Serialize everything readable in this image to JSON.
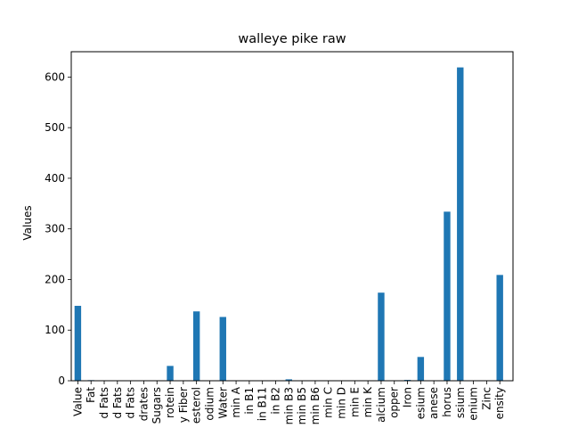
{
  "chart_data": {
    "type": "bar",
    "title": "walleye pike raw",
    "xlabel": "",
    "ylabel": "Values",
    "ylim": [
      0,
      650
    ],
    "yticks": [
      0,
      100,
      200,
      300,
      400,
      500,
      600
    ],
    "grid": false,
    "legend": "none",
    "bar_color": "#1f77b4",
    "categories": [
      "Value",
      "Fat",
      "d Fats",
      "d Fats",
      "d Fats",
      "drates",
      "Sugars",
      "rotein",
      "y Fiber",
      "esterol",
      "odium",
      "Water",
      "min A",
      "in B1",
      "in B11",
      "in B2",
      "min B3",
      "min B5",
      "min B6",
      "min C",
      "min D",
      "min E",
      "min K",
      "alcium",
      "opper",
      "Iron",
      "esium",
      "anese",
      "horus",
      "ssium",
      "enium",
      "Zinc",
      "ensity"
    ],
    "values": [
      148,
      1.2,
      0.3,
      0.3,
      0.4,
      0,
      0,
      29.3,
      0,
      137,
      0.05,
      126,
      0.01,
      0.3,
      0.02,
      0.2,
      2.8,
      0.85,
      0.14,
      0,
      0,
      0,
      0,
      174,
      0.2,
      1.7,
      47,
      0.6,
      334,
      619,
      0.05,
      0.66,
      209
    ]
  }
}
